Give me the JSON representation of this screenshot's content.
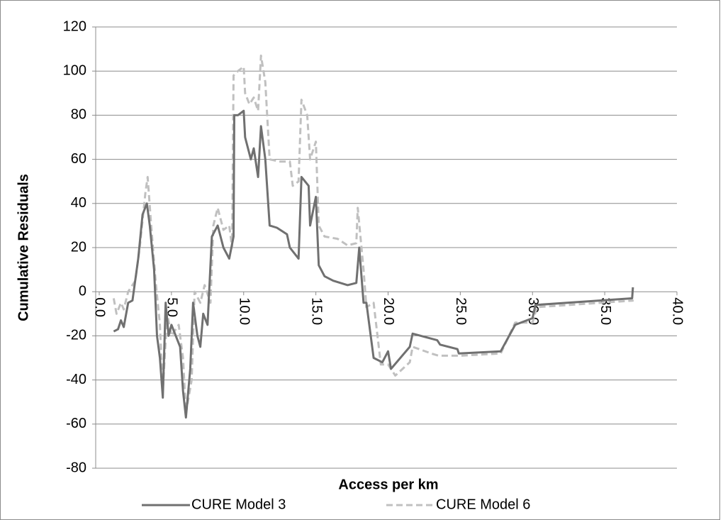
{
  "chart_data": {
    "type": "line",
    "xlabel": "Access per km",
    "ylabel": "Cumulative Residuals",
    "xlim": [
      0,
      40
    ],
    "xticks": [
      {
        "value": 0,
        "label": "0.0"
      },
      {
        "value": 5,
        "label": "5.0"
      },
      {
        "value": 10,
        "label": "10.0"
      },
      {
        "value": 15,
        "label": "15.0"
      },
      {
        "value": 20,
        "label": "20.0"
      },
      {
        "value": 25,
        "label": "25.0"
      },
      {
        "value": 30,
        "label": "30.0"
      },
      {
        "value": 35,
        "label": "35.0"
      },
      {
        "value": 40,
        "label": "40.0"
      }
    ],
    "ylim": [
      -80,
      120
    ],
    "yticks": [
      -80,
      -60,
      -40,
      -20,
      0,
      20,
      40,
      60,
      80,
      100,
      120
    ],
    "grid": true,
    "legend": "bottom",
    "series": [
      {
        "name": "CURE Model 3",
        "color": "#707070",
        "dash": false,
        "x": [
          1.0,
          1.3,
          1.5,
          1.7,
          2.0,
          2.3,
          2.7,
          3.0,
          3.3,
          3.5,
          3.8,
          4.0,
          4.2,
          4.4,
          4.6,
          4.8,
          5.0,
          5.3,
          5.6,
          5.8,
          6.0,
          6.3,
          6.5,
          6.8,
          7.0,
          7.2,
          7.5,
          7.8,
          8.2,
          8.6,
          9.0,
          9.3,
          9.35,
          9.6,
          10.0,
          10.1,
          10.5,
          10.7,
          11.0,
          11.2,
          11.5,
          11.8,
          12.3,
          13.0,
          13.2,
          13.8,
          14.0,
          14.5,
          14.6,
          15.0,
          15.2,
          15.6,
          16.2,
          17.2,
          17.8,
          18.0,
          18.3,
          18.5,
          19.0,
          19.6,
          20.0,
          20.2,
          21.5,
          21.7,
          23.4,
          23.6,
          24.8,
          24.9,
          27.8,
          28.8,
          30.0,
          30.2,
          36.9,
          36.95
        ],
        "values": [
          -18,
          -17,
          -13,
          -16,
          -5,
          -4,
          15,
          35,
          40,
          30,
          10,
          -20,
          -30,
          -48,
          -5,
          -20,
          -15,
          -20,
          -25,
          -45,
          -57,
          -35,
          -5,
          -20,
          -25,
          -10,
          -15,
          25,
          30,
          20,
          15,
          25,
          80,
          80,
          82,
          70,
          60,
          65,
          52,
          75,
          60,
          30,
          29,
          26,
          20,
          15,
          52,
          48,
          30,
          43,
          12,
          7,
          5,
          3,
          4,
          20,
          -5,
          -5,
          -30,
          -32,
          -27,
          -35,
          -25,
          -19,
          -22,
          -24,
          -26,
          -28,
          -27,
          -15,
          -12,
          -6,
          -3,
          2
        ]
      },
      {
        "name": "CURE Model 6",
        "color": "#c0c0c0",
        "dash": true,
        "x": [
          1.0,
          1.2,
          1.5,
          1.7,
          2.0,
          2.5,
          2.8,
          3.2,
          3.35,
          3.6,
          3.9,
          4.2,
          4.4,
          4.7,
          5.0,
          5.5,
          5.8,
          6.0,
          6.4,
          6.6,
          7.0,
          7.3,
          7.7,
          7.9,
          8.2,
          8.6,
          9.0,
          9.2,
          9.3,
          9.6,
          10.0,
          10.1,
          10.4,
          10.7,
          11.0,
          11.2,
          11.5,
          11.8,
          12.5,
          13.2,
          13.4,
          13.8,
          14.0,
          14.4,
          14.6,
          15.0,
          15.2,
          15.6,
          16.5,
          17.2,
          17.8,
          17.9,
          18.3,
          18.5,
          19.0,
          19.5,
          20.0,
          20.5,
          21.5,
          21.7,
          23.0,
          23.5,
          25.0,
          27.8,
          28.8,
          30.0,
          30.3,
          37.0
        ],
        "values": [
          -3,
          -10,
          -5,
          -8,
          0,
          5,
          20,
          45,
          52,
          30,
          5,
          -15,
          -45,
          -10,
          -20,
          -15,
          -30,
          -55,
          -40,
          0,
          -5,
          3,
          -5,
          30,
          38,
          28,
          30,
          20,
          98,
          100,
          102,
          90,
          85,
          88,
          82,
          107,
          95,
          60,
          59,
          59,
          48,
          50,
          87,
          80,
          60,
          68,
          30,
          25,
          24,
          21,
          22,
          38,
          10,
          -7,
          -5,
          -33,
          -33,
          -38,
          -32,
          -25,
          -28,
          -29,
          -29,
          -28,
          -14,
          -14,
          -7,
          -4
        ]
      }
    ]
  }
}
